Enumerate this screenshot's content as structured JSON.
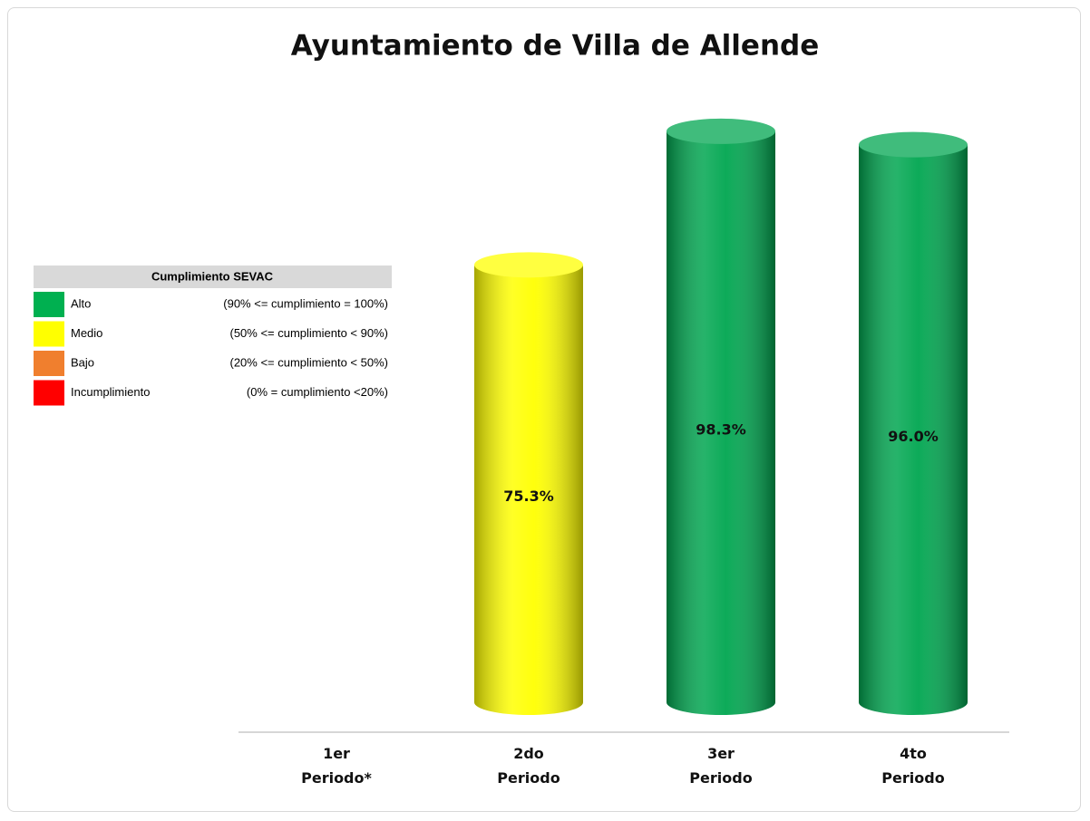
{
  "chart_data": {
    "type": "bar",
    "title": "Ayuntamiento de Villa de Allende",
    "categories": [
      "1er Periodo*",
      "2do Periodo",
      "3er Periodo",
      "4to Periodo"
    ],
    "values": [
      null,
      75.3,
      98.3,
      96.0
    ],
    "value_labels": [
      null,
      "75.3%",
      "98.3%",
      "96.0%"
    ],
    "colors": [
      null,
      "#ffff00",
      "#00a650",
      "#00a650"
    ],
    "legend": {
      "title": "Cumplimiento SEVAC",
      "items": [
        {
          "color": "#00b050",
          "label": "Alto",
          "range": "(90% <= cumplimiento = 100%)"
        },
        {
          "color": "#ffff00",
          "label": "Medio",
          "range": "(50% <= cumplimiento < 90%)"
        },
        {
          "color": "#f07f2e",
          "label": "Bajo",
          "range": "(20% <= cumplimiento < 50%)"
        },
        {
          "color": "#ff0000",
          "label": "Incumplimiento",
          "range": "(0% = cumplimiento <20%)"
        }
      ]
    }
  }
}
